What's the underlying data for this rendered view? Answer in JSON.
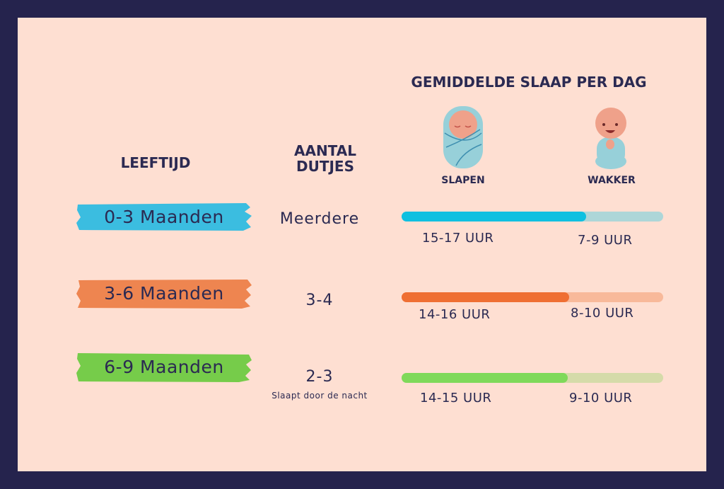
{
  "headers": {
    "age": "LEEFTIJD",
    "naps": "AANTAL DUTJES",
    "sleep": "GEMIDDELDE SLAAP PER DAG",
    "asleep": "SLAPEN",
    "awake": "WAKKER"
  },
  "rows": [
    {
      "age": "0-3 Maanden",
      "naps": "Meerdere",
      "note": "",
      "sleep": "15-17 UUR",
      "awake": "7-9 UUR",
      "sleep_fraction": 0.705,
      "color": "#0fc0e0",
      "track": "#add6d8",
      "brush": "#3bbde0"
    },
    {
      "age": "3-6 Maanden",
      "naps": "3-4",
      "note": "",
      "sleep": "14-16 UUR",
      "awake": "8-10 UUR",
      "sleep_fraction": 0.64,
      "color": "#ef6f33",
      "track": "#f8b99a",
      "brush": "#ee8550"
    },
    {
      "age": "6-9 Maanden",
      "naps": "2-3",
      "note": "Slaapt door de nacht",
      "sleep": "14-15 UUR",
      "awake": "9-10 UUR",
      "sleep_fraction": 0.635,
      "color": "#7fd95a",
      "track": "#d5dba9",
      "brush": "#76cc4a"
    }
  ],
  "icons": {
    "asleep": "sleeping-baby-icon",
    "awake": "awake-baby-icon"
  }
}
